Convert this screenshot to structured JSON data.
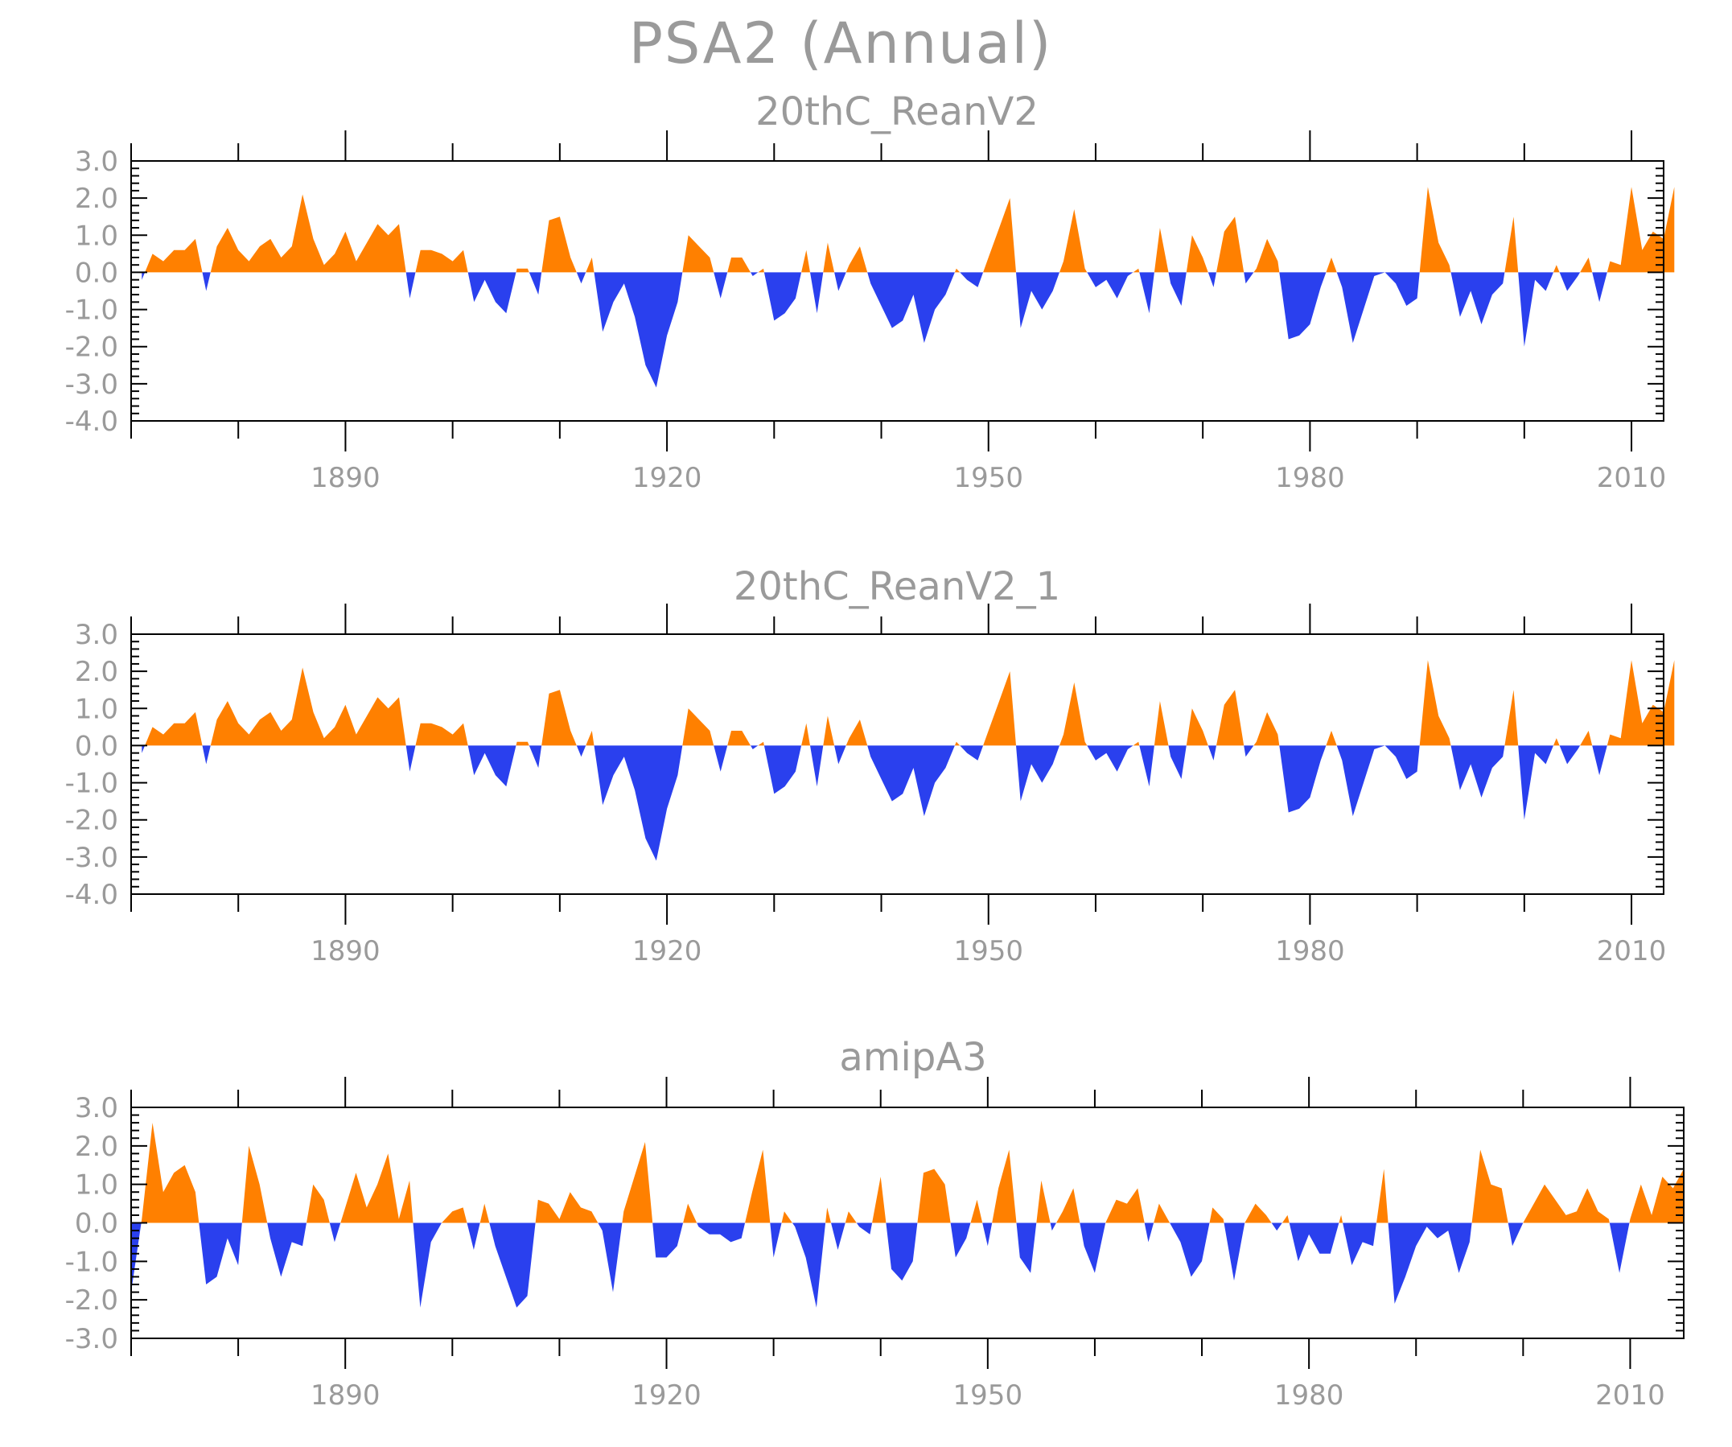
{
  "figure": {
    "title": "PSA2 (Annual)",
    "colors": {
      "positive": "#ff8000",
      "negative": "#2a40ee",
      "text": "#9a9a9a",
      "frame": "#000000"
    }
  },
  "chart_data": [
    {
      "type": "area",
      "title": "20thC_ReanV2",
      "xlim": [
        1870,
        2013
      ],
      "ylim": [
        -4.0,
        3.0
      ],
      "x_major_ticks": [
        1890,
        1920,
        1950,
        1980,
        2010
      ],
      "x_tick_labels": [
        "1890",
        "1920",
        "1950",
        "1980",
        "2010"
      ],
      "y_ticks": [
        3.0,
        2.0,
        1.0,
        0.0,
        -1.0,
        -2.0,
        -3.0,
        -4.0
      ],
      "y_tick_labels": [
        "3.0",
        "2.0",
        "1.0",
        "0.0",
        "-1.0",
        "-2.0",
        "-3.0",
        "-4.0"
      ],
      "fill_above_zero": "#ff8000",
      "fill_below_zero": "#2a40ee",
      "x_start": 1871,
      "x_step": 1,
      "values": [
        -0.2,
        0.5,
        0.3,
        0.6,
        0.6,
        0.9,
        -0.5,
        0.7,
        1.2,
        0.6,
        0.3,
        0.7,
        0.9,
        0.4,
        0.7,
        2.1,
        0.9,
        0.2,
        0.5,
        1.1,
        0.3,
        0.8,
        1.3,
        1.0,
        1.3,
        -0.7,
        0.6,
        0.6,
        0.5,
        0.3,
        0.6,
        -0.8,
        -0.2,
        -0.8,
        -1.1,
        0.1,
        0.1,
        -0.6,
        1.4,
        1.5,
        0.4,
        -0.3,
        0.4,
        -1.6,
        -0.8,
        -0.3,
        -1.2,
        -2.5,
        -3.1,
        -1.7,
        -0.8,
        1.0,
        0.7,
        0.4,
        -0.7,
        0.4,
        0.4,
        -0.1,
        0.1,
        -1.3,
        -1.1,
        -0.7,
        0.6,
        -1.1,
        0.8,
        -0.5,
        0.2,
        0.7,
        -0.3,
        -0.9,
        -1.5,
        -1.3,
        -0.6,
        -1.9,
        -1.0,
        -0.6,
        0.1,
        -0.2,
        -0.4,
        0.4,
        1.2,
        2.0,
        -1.5,
        -0.5,
        -1.0,
        -0.5,
        0.3,
        1.7,
        0.1,
        -0.4,
        -0.2,
        -0.7,
        -0.1,
        0.1,
        -1.1,
        1.2,
        -0.3,
        -0.9,
        1.0,
        0.4,
        -0.4,
        1.1,
        1.5,
        -0.3,
        0.1,
        0.9,
        0.3,
        -1.8,
        -1.7,
        -1.4,
        -0.4,
        0.4,
        -0.4,
        -1.9,
        -1.0,
        -0.1,
        0.0,
        -0.3,
        -0.9,
        -0.7,
        2.3,
        0.8,
        0.2,
        -1.2,
        -0.5,
        -1.4,
        -0.6,
        -0.3,
        1.5,
        -2.0,
        -0.2,
        -0.5,
        0.2,
        -0.5,
        -0.1,
        0.4,
        -0.8,
        0.3,
        0.2,
        2.3,
        0.6,
        1.1,
        0.9,
        2.3
      ]
    },
    {
      "type": "area",
      "title": "20thC_ReanV2_1",
      "xlim": [
        1870,
        2013
      ],
      "ylim": [
        -4.0,
        3.0
      ],
      "x_major_ticks": [
        1890,
        1920,
        1950,
        1980,
        2010
      ],
      "x_tick_labels": [
        "1890",
        "1920",
        "1950",
        "1980",
        "2010"
      ],
      "y_ticks": [
        3.0,
        2.0,
        1.0,
        0.0,
        -1.0,
        -2.0,
        -3.0,
        -4.0
      ],
      "y_tick_labels": [
        "3.0",
        "2.0",
        "1.0",
        "0.0",
        "-1.0",
        "-2.0",
        "-3.0",
        "-4.0"
      ],
      "fill_above_zero": "#ff8000",
      "fill_below_zero": "#2a40ee",
      "x_start": 1871,
      "x_step": 1,
      "values": [
        -0.2,
        0.5,
        0.3,
        0.6,
        0.6,
        0.9,
        -0.5,
        0.7,
        1.2,
        0.6,
        0.3,
        0.7,
        0.9,
        0.4,
        0.7,
        2.1,
        0.9,
        0.2,
        0.5,
        1.1,
        0.3,
        0.8,
        1.3,
        1.0,
        1.3,
        -0.7,
        0.6,
        0.6,
        0.5,
        0.3,
        0.6,
        -0.8,
        -0.2,
        -0.8,
        -1.1,
        0.1,
        0.1,
        -0.6,
        1.4,
        1.5,
        0.4,
        -0.3,
        0.4,
        -1.6,
        -0.8,
        -0.3,
        -1.2,
        -2.5,
        -3.1,
        -1.7,
        -0.8,
        1.0,
        0.7,
        0.4,
        -0.7,
        0.4,
        0.4,
        -0.1,
        0.1,
        -1.3,
        -1.1,
        -0.7,
        0.6,
        -1.1,
        0.8,
        -0.5,
        0.2,
        0.7,
        -0.3,
        -0.9,
        -1.5,
        -1.3,
        -0.6,
        -1.9,
        -1.0,
        -0.6,
        0.1,
        -0.2,
        -0.4,
        0.4,
        1.2,
        2.0,
        -1.5,
        -0.5,
        -1.0,
        -0.5,
        0.3,
        1.7,
        0.1,
        -0.4,
        -0.2,
        -0.7,
        -0.1,
        0.1,
        -1.1,
        1.2,
        -0.3,
        -0.9,
        1.0,
        0.4,
        -0.4,
        1.1,
        1.5,
        -0.3,
        0.1,
        0.9,
        0.3,
        -1.8,
        -1.7,
        -1.4,
        -0.4,
        0.4,
        -0.4,
        -1.9,
        -1.0,
        -0.1,
        0.0,
        -0.3,
        -0.9,
        -0.7,
        2.3,
        0.8,
        0.2,
        -1.2,
        -0.5,
        -1.4,
        -0.6,
        -0.3,
        1.5,
        -2.0,
        -0.2,
        -0.5,
        0.2,
        -0.5,
        -0.1,
        0.4,
        -0.8,
        0.3,
        0.2,
        2.3,
        0.6,
        1.1,
        0.9,
        2.3
      ]
    },
    {
      "type": "area",
      "title": "amipA3",
      "xlim": [
        1870,
        2015
      ],
      "ylim": [
        -3.0,
        3.0
      ],
      "x_major_ticks": [
        1890,
        1920,
        1950,
        1980,
        2010
      ],
      "x_tick_labels": [
        "1890",
        "1920",
        "1950",
        "1980",
        "2010"
      ],
      "y_ticks": [
        3.0,
        2.0,
        1.0,
        0.0,
        -1.0,
        -2.0,
        -3.0
      ],
      "y_tick_labels": [
        "3.0",
        "2.0",
        "1.0",
        "0.0",
        "-1.0",
        "-2.0",
        "-3.0"
      ],
      "fill_above_zero": "#ff8000",
      "fill_below_zero": "#2a40ee",
      "x_start": 1870,
      "x_step": 1,
      "values": [
        -1.8,
        0.1,
        2.6,
        0.8,
        1.3,
        1.5,
        0.8,
        -1.6,
        -1.4,
        -0.4,
        -1.1,
        2.0,
        1.0,
        -0.4,
        -1.4,
        -0.5,
        -0.6,
        1.0,
        0.6,
        -0.5,
        0.4,
        1.3,
        0.4,
        1.0,
        1.8,
        0.1,
        1.1,
        -2.2,
        -0.5,
        0.0,
        0.3,
        0.4,
        -0.7,
        0.5,
        -0.6,
        -1.4,
        -2.2,
        -1.9,
        0.6,
        0.5,
        0.1,
        0.8,
        0.4,
        0.3,
        -0.2,
        -1.8,
        0.3,
        1.2,
        2.1,
        -0.9,
        -0.9,
        -0.6,
        0.5,
        -0.1,
        -0.3,
        -0.3,
        -0.5,
        -0.4,
        0.8,
        1.9,
        -0.9,
        0.3,
        -0.1,
        -0.9,
        -2.2,
        0.4,
        -0.7,
        0.3,
        -0.1,
        -0.3,
        1.2,
        -1.2,
        -1.5,
        -1.0,
        1.3,
        1.4,
        1.0,
        -0.9,
        -0.4,
        0.6,
        -0.6,
        0.9,
        1.9,
        -0.9,
        -1.3,
        1.1,
        -0.2,
        0.3,
        0.9,
        -0.6,
        -1.3,
        0.0,
        0.6,
        0.5,
        0.9,
        -0.5,
        0.5,
        0.0,
        -0.5,
        -1.4,
        -1.0,
        0.4,
        0.1,
        -1.5,
        0.0,
        0.5,
        0.2,
        -0.2,
        0.2,
        -1.0,
        -0.3,
        -0.8,
        -0.8,
        0.2,
        -1.1,
        -0.5,
        -0.6,
        1.4,
        -2.1,
        -1.4,
        -0.6,
        -0.1,
        -0.4,
        -0.2,
        -1.3,
        -0.5,
        1.9,
        1.0,
        0.9,
        -0.6,
        0.0,
        0.5,
        1.0,
        0.6,
        0.2,
        0.3,
        0.9,
        0.3,
        0.1,
        -1.3,
        0.1,
        1.0,
        0.2,
        1.2,
        0.9,
        1.4
      ]
    }
  ]
}
